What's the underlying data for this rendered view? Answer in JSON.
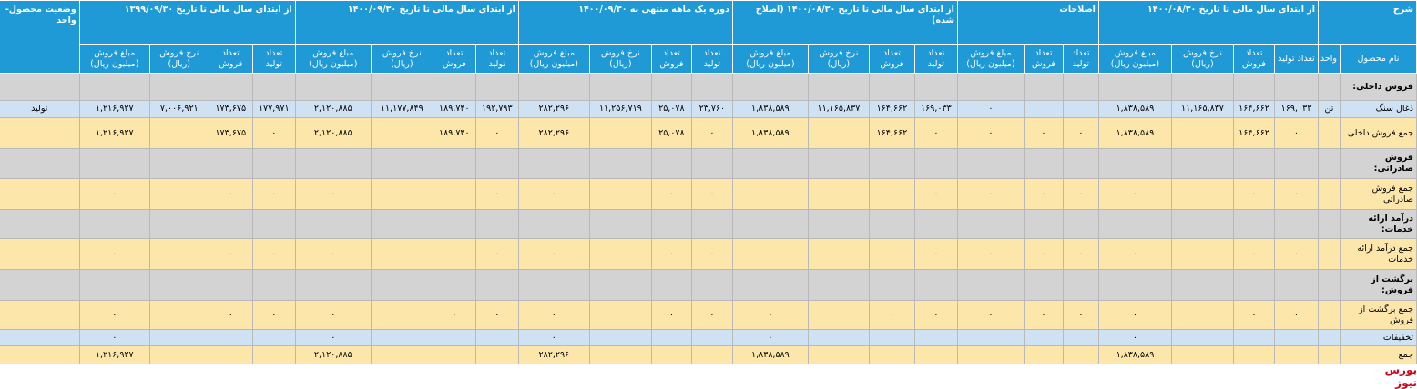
{
  "header": {
    "title": "شرح",
    "name_col": "نام محصول",
    "unit_col": "واحد",
    "status": "وضعیت محصول-واحد",
    "groups": [
      {
        "title": "از ابتدای سال مالی تا تاریخ ۱۴۰۰/۰۸/۳۰",
        "columns": [
          "تعداد تولید",
          "تعداد فروش",
          "نرخ فروش (ریال)",
          "مبلغ فروش (میلیون ریال)"
        ]
      },
      {
        "title": "اصلاحات",
        "columns": [
          "تعداد تولید",
          "تعداد فروش",
          "مبلغ فروش (میلیون ریال)"
        ]
      },
      {
        "title": "از ابتدای سال مالی تا تاریخ ۱۴۰۰/۰۸/۳۰ (اصلاح شده)",
        "columns": [
          "تعداد تولید",
          "تعداد فروش",
          "نرخ فروش (ریال)",
          "مبلغ فروش (میلیون ریال)"
        ]
      },
      {
        "title": "دوره یک ماهه منتهی به ۱۴۰۰/۰۹/۳۰",
        "columns": [
          "تعداد تولید",
          "تعداد فروش",
          "نرخ فروش (ریال)",
          "مبلغ فروش (میلیون ریال)"
        ]
      },
      {
        "title": "از ابتدای سال مالی تا تاریخ ۱۴۰۰/۰۹/۳۰",
        "columns": [
          "تعداد تولید",
          "تعداد فروش",
          "نرخ فروش (ریال)",
          "مبلغ فروش (میلیون ریال)"
        ]
      },
      {
        "title": "از ابتدای سال مالی تا تاریخ ۱۳۹۹/۰۹/۳۰",
        "columns": [
          "تعداد تولید",
          "تعداد فروش",
          "نرخ فروش (ریال)",
          "مبلغ فروش (میلیون ریال)"
        ]
      }
    ]
  },
  "rows": [
    {
      "kind": "section",
      "label": "فروش داخلی:"
    },
    {
      "kind": "highlight",
      "cells": [
        "ذغال سنگ",
        "تن",
        "۱۶۹,۰۳۳",
        "۱۶۴,۶۶۲",
        "۱۱,۱۶۵,۸۳۷",
        "۱,۸۳۸,۵۸۹",
        null,
        null,
        "۰",
        "۱۶۹,۰۳۳",
        "۱۶۴,۶۶۲",
        "۱۱,۱۶۵,۸۳۷",
        "۱,۸۳۸,۵۸۹",
        "۲۳,۷۶۰",
        "۲۵,۰۷۸",
        "۱۱,۲۵۶,۷۱۹",
        "۲۸۲,۲۹۶",
        "۱۹۲,۷۹۳",
        "۱۸۹,۷۴۰",
        "۱۱,۱۷۷,۸۴۹",
        "۲,۱۲۰,۸۸۵",
        "۱۷۷,۹۷۱",
        "۱۷۳,۶۷۵",
        "۷,۰۰۶,۹۲۱",
        "۱,۲۱۶,۹۲۷",
        "تولید"
      ]
    },
    {
      "kind": "data",
      "cells": [
        "جمع فروش داخلی",
        null,
        "۰",
        "۱۶۴,۶۶۲",
        null,
        "۱,۸۳۸,۵۸۹",
        "۰",
        "۰",
        "۰",
        "۰",
        "۱۶۴,۶۶۲",
        null,
        "۱,۸۳۸,۵۸۹",
        "۰",
        "۲۵,۰۷۸",
        null,
        "۲۸۲,۲۹۶",
        "۰",
        "۱۸۹,۷۴۰",
        null,
        "۲,۱۲۰,۸۸۵",
        "۰",
        "۱۷۳,۶۷۵",
        null,
        "۱,۲۱۶,۹۲۷",
        null
      ]
    },
    {
      "kind": "section",
      "label": "فروش صادراتی:"
    },
    {
      "kind": "data",
      "cells": [
        "جمع فروش صادراتی",
        null,
        "۰",
        "۰",
        null,
        "۰",
        "۰",
        "۰",
        "۰",
        "۰",
        "۰",
        null,
        "۰",
        "۰",
        "۰",
        null,
        "۰",
        "۰",
        "۰",
        null,
        "۰",
        "۰",
        "۰",
        null,
        "۰",
        null
      ]
    },
    {
      "kind": "section",
      "label": "درآمد ارائه خدمات:"
    },
    {
      "kind": "data",
      "cells": [
        "جمع درآمد ارائه خدمات",
        null,
        "۰",
        "۰",
        null,
        "۰",
        "۰",
        "۰",
        "۰",
        "۰",
        "۰",
        null,
        "۰",
        "۰",
        "۰",
        null,
        "۰",
        "۰",
        "۰",
        null,
        "۰",
        "۰",
        "۰",
        null,
        "۰",
        null
      ]
    },
    {
      "kind": "section",
      "label": "برگشت از فروش:"
    },
    {
      "kind": "data",
      "cells": [
        "جمع برگشت از فروش",
        null,
        "۰",
        "۰",
        null,
        "۰",
        "۰",
        "۰",
        "۰",
        "۰",
        "۰",
        null,
        "۰",
        "۰",
        "۰",
        null,
        "۰",
        "۰",
        "۰",
        null,
        "۰",
        "۰",
        "۰",
        null,
        "۰",
        null
      ]
    },
    {
      "kind": "highlight",
      "cells": [
        "تخفیفات",
        null,
        null,
        null,
        null,
        "۰",
        null,
        null,
        null,
        null,
        null,
        null,
        "۰",
        null,
        null,
        null,
        "۰",
        null,
        null,
        null,
        "۰",
        null,
        null,
        null,
        "۰",
        null
      ]
    },
    {
      "kind": "data",
      "cells": [
        "جمع",
        null,
        null,
        null,
        null,
        "۱,۸۳۸,۵۸۹",
        null,
        null,
        null,
        null,
        null,
        null,
        "۱,۸۳۸,۵۸۹",
        null,
        null,
        null,
        "۲۸۲,۲۹۶",
        null,
        null,
        null,
        "۲,۱۲۰,۸۸۵",
        null,
        null,
        null,
        "۱,۲۱۶,۹۲۷",
        null
      ]
    }
  ],
  "watermark": "بورس نیوز"
}
